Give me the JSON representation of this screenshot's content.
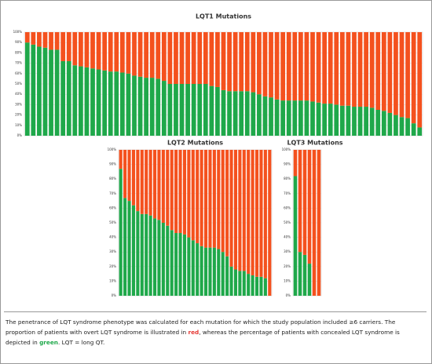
{
  "chart_data": [
    {
      "type": "stacked_bar",
      "title": "LQT1 Mutations",
      "categories": [
        null,
        null,
        null,
        null,
        null,
        null,
        null,
        null,
        null,
        null,
        null,
        null,
        null,
        null,
        null,
        null,
        null,
        null,
        null,
        null,
        null,
        null,
        null,
        null,
        null,
        null,
        null,
        null,
        null,
        null,
        null,
        null,
        null,
        null,
        null,
        null,
        null,
        null,
        null,
        null,
        null,
        null,
        null,
        null,
        null,
        null,
        null,
        null,
        null,
        null,
        null,
        null,
        null,
        null,
        null,
        null,
        null,
        null,
        null,
        null,
        null,
        null,
        null,
        null,
        null,
        null,
        null
      ],
      "series": [
        {
          "color": "#1fa84a",
          "values": [
            90,
            88,
            86,
            85,
            83,
            83,
            72,
            72,
            68,
            67,
            66,
            65,
            64,
            63,
            62,
            62,
            61,
            60,
            58,
            57,
            56,
            56,
            55,
            53,
            50,
            50,
            50,
            50,
            50,
            50,
            50,
            48,
            47,
            44,
            43,
            43,
            43,
            43,
            42,
            40,
            38,
            37,
            35,
            34,
            34,
            34,
            34,
            34,
            33,
            32,
            31,
            31,
            30,
            29,
            29,
            28,
            28,
            28,
            27,
            25,
            24,
            22,
            20,
            18,
            17,
            12,
            8
          ]
        },
        {
          "color": "#f4511e",
          "values": [
            10,
            12,
            14,
            15,
            17,
            17,
            28,
            28,
            32,
            33,
            34,
            35,
            36,
            37,
            38,
            38,
            39,
            40,
            42,
            43,
            44,
            44,
            45,
            47,
            50,
            50,
            50,
            50,
            50,
            50,
            50,
            52,
            53,
            56,
            57,
            57,
            57,
            57,
            58,
            60,
            62,
            63,
            65,
            66,
            66,
            66,
            66,
            66,
            67,
            68,
            69,
            69,
            70,
            71,
            71,
            72,
            72,
            72,
            73,
            75,
            76,
            78,
            80,
            82,
            83,
            88,
            92
          ]
        }
      ],
      "ylim": [
        0,
        100
      ],
      "yticks": [
        {
          "value": 0,
          "label": "0%"
        },
        {
          "value": 10,
          "label": "10%"
        },
        {
          "value": 20,
          "label": "20%"
        },
        {
          "value": 30,
          "label": "30%"
        },
        {
          "value": 40,
          "label": "40%"
        },
        {
          "value": 50,
          "label": "50%"
        },
        {
          "value": 60,
          "label": "60%"
        },
        {
          "value": 70,
          "label": "70%"
        },
        {
          "value": 80,
          "label": "80%"
        },
        {
          "value": 90,
          "label": "90%"
        },
        {
          "value": 100,
          "label": "100%"
        }
      ],
      "grid": true
    },
    {
      "type": "stacked_bar",
      "title": "LQT2 Mutations",
      "categories": [
        null,
        null,
        null,
        null,
        null,
        null,
        null,
        null,
        null,
        null,
        null,
        null,
        null,
        null,
        null,
        null,
        null,
        null,
        null,
        null,
        null,
        null,
        null,
        null,
        null,
        null,
        null,
        null,
        null,
        null,
        null,
        null,
        null,
        null,
        null,
        null
      ],
      "series": [
        {
          "color": "#1fa84a",
          "values": [
            87,
            67,
            65,
            62,
            58,
            56,
            56,
            55,
            53,
            52,
            50,
            48,
            45,
            43,
            43,
            42,
            40,
            38,
            36,
            34,
            33,
            33,
            33,
            32,
            30,
            27,
            20,
            18,
            17,
            17,
            15,
            14,
            13,
            13,
            12,
            0
          ]
        },
        {
          "color": "#f4511e",
          "values": [
            13,
            33,
            35,
            38,
            42,
            44,
            44,
            45,
            47,
            48,
            50,
            52,
            55,
            57,
            57,
            58,
            60,
            62,
            64,
            66,
            67,
            67,
            67,
            68,
            70,
            73,
            80,
            82,
            83,
            83,
            85,
            86,
            87,
            87,
            88,
            100
          ]
        }
      ],
      "ylim": [
        0,
        100
      ],
      "yticks": [
        {
          "value": 0,
          "label": "0%"
        },
        {
          "value": 10,
          "label": "10%"
        },
        {
          "value": 20,
          "label": "20%"
        },
        {
          "value": 30,
          "label": "30%"
        },
        {
          "value": 40,
          "label": "40%"
        },
        {
          "value": 50,
          "label": "50%"
        },
        {
          "value": 60,
          "label": "60%"
        },
        {
          "value": 70,
          "label": "70%"
        },
        {
          "value": 80,
          "label": "80%"
        },
        {
          "value": 90,
          "label": "90%"
        },
        {
          "value": 100,
          "label": "100%"
        }
      ],
      "grid": true
    },
    {
      "type": "stacked_bar",
      "title": "LQT3 Mutations",
      "categories": [
        null,
        null,
        null,
        null,
        null,
        null
      ],
      "series": [
        {
          "color": "#1fa84a",
          "values": [
            82,
            30,
            28,
            22,
            0,
            0
          ]
        },
        {
          "color": "#f4511e",
          "values": [
            18,
            70,
            72,
            78,
            100,
            100
          ]
        }
      ],
      "ylim": [
        0,
        100
      ],
      "yticks": [
        {
          "value": 0,
          "label": "0%"
        },
        {
          "value": 10,
          "label": "10%"
        },
        {
          "value": 20,
          "label": "20%"
        },
        {
          "value": 30,
          "label": "30%"
        },
        {
          "value": 40,
          "label": "40%"
        },
        {
          "value": 50,
          "label": "50%"
        },
        {
          "value": 60,
          "label": "60%"
        },
        {
          "value": 70,
          "label": "70%"
        },
        {
          "value": 80,
          "label": "80%"
        },
        {
          "value": 90,
          "label": "90%"
        },
        {
          "value": 100,
          "label": "100%"
        }
      ],
      "grid": true
    }
  ],
  "caption": {
    "before": "The penetrance of LQT syndrome phenotype was calculated for each mutation for which the study population included ≥6 carriers. The proportion of patients with overt LQT syndrome is illustrated in ",
    "red": "red",
    "middle": ", whereas the percentage of patients with concealed LQT syndrome is depicted in ",
    "green": "green",
    "after": ". LQT = long QT."
  }
}
